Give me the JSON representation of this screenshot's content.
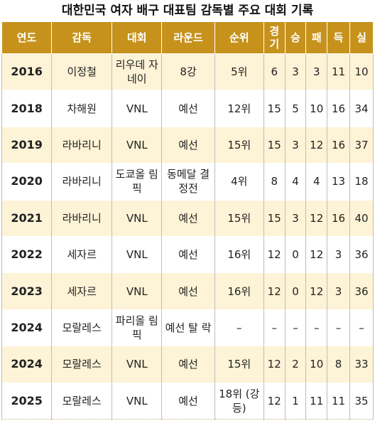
{
  "title": "대한민국 여자 배구 대표팀 감독별 주요 대회 기록",
  "headers": {
    "year": "연도",
    "coach": "감독",
    "event": "대회",
    "round": "라운드",
    "rank": "순위",
    "games_1": "경",
    "games_2": "기",
    "wins": "승",
    "losses": "패",
    "sets_for": "득",
    "sets_against": "실"
  },
  "rows": [
    {
      "year": "2016",
      "coach": "이정철",
      "event": "리우데 자네이",
      "round": "8강",
      "rank": "5위",
      "g": "6",
      "w": "3",
      "l": "3",
      "f": "11",
      "a": "10"
    },
    {
      "year": "2018",
      "coach": "차해원",
      "event": "VNL",
      "round": "예선",
      "rank": "12위",
      "g": "15",
      "w": "5",
      "l": "10",
      "f": "16",
      "a": "34"
    },
    {
      "year": "2019",
      "coach": "라바리니",
      "event": "VNL",
      "round": "예선",
      "rank": "15위",
      "g": "15",
      "w": "3",
      "l": "12",
      "f": "16",
      "a": "37"
    },
    {
      "year": "2020",
      "coach": "라바리니",
      "event": "도쿄올 림픽",
      "round": "동메달 결정전",
      "rank": "4위",
      "g": "8",
      "w": "4",
      "l": "4",
      "f": "13",
      "a": "18"
    },
    {
      "year": "2021",
      "coach": "라바리니",
      "event": "VNL",
      "round": "예선",
      "rank": "15위",
      "g": "15",
      "w": "3",
      "l": "12",
      "f": "16",
      "a": "40"
    },
    {
      "year": "2022",
      "coach": "세자르",
      "event": "VNL",
      "round": "예선",
      "rank": "16위",
      "g": "12",
      "w": "0",
      "l": "12",
      "f": "3",
      "a": "36"
    },
    {
      "year": "2023",
      "coach": "세자르",
      "event": "VNL",
      "round": "예선",
      "rank": "16위",
      "g": "12",
      "w": "0",
      "l": "12",
      "f": "3",
      "a": "36"
    },
    {
      "year": "2024",
      "coach": "모랄레스",
      "event": "파리올 림픽",
      "round": "예선 탈 락",
      "rank": "–",
      "g": "–",
      "w": "–",
      "l": "–",
      "f": "–",
      "a": "–"
    },
    {
      "year": "2024",
      "coach": "모랄레스",
      "event": "VNL",
      "round": "예선",
      "rank": "15위",
      "g": "12",
      "w": "2",
      "l": "10",
      "f": "8",
      "a": "33"
    },
    {
      "year": "2025",
      "coach": "모랄레스",
      "event": "VNL",
      "round": "예선",
      "rank": "18위 (강등)",
      "g": "12",
      "w": "1",
      "l": "11",
      "f": "11",
      "a": "35"
    }
  ]
}
